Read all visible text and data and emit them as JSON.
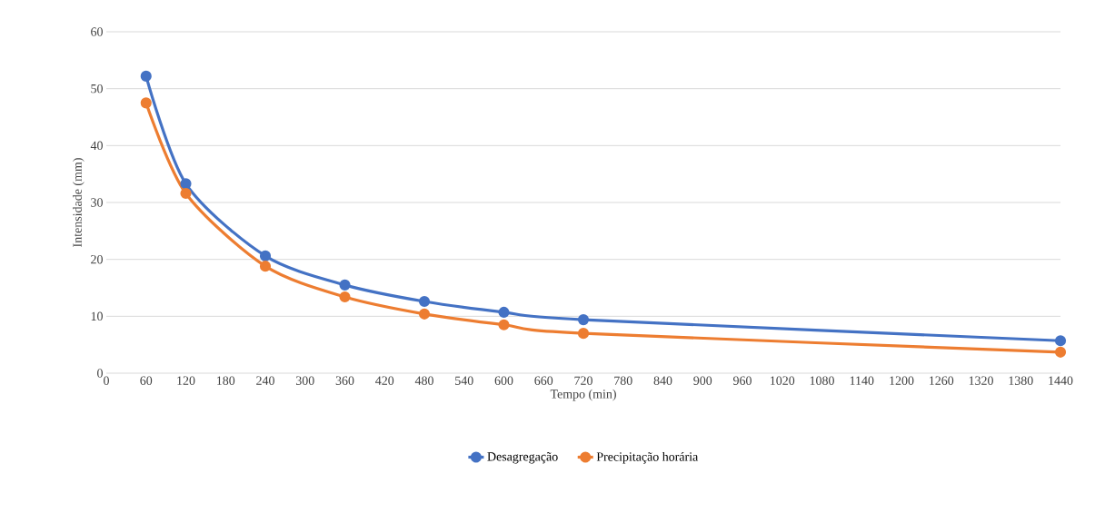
{
  "chart_data": {
    "type": "line",
    "xlabel": "Tempo (min)",
    "ylabel": "Intensidade (mm)",
    "x": [
      60,
      120,
      240,
      360,
      480,
      600,
      720,
      1440
    ],
    "series": [
      {
        "name": "Desagregação",
        "color": "#4472c4",
        "values": [
          52.2,
          33.3,
          20.6,
          15.5,
          12.6,
          10.7,
          9.4,
          5.7
        ]
      },
      {
        "name": "Precipitação horária",
        "color": "#ed7d31",
        "values": [
          47.5,
          31.6,
          18.8,
          13.4,
          10.4,
          8.5,
          7.0,
          3.7
        ]
      }
    ],
    "xlim": [
      0,
      1440
    ],
    "ylim": [
      0,
      60
    ],
    "xticks": [
      0,
      60,
      120,
      180,
      240,
      300,
      360,
      420,
      480,
      540,
      600,
      660,
      720,
      780,
      840,
      900,
      960,
      1020,
      1080,
      1140,
      1200,
      1260,
      1320,
      1380,
      1440
    ],
    "yticks": [
      0,
      10,
      20,
      30,
      40,
      50,
      60
    ],
    "grid": "y",
    "legend": "bottom",
    "marker": "circle",
    "line_style": "solid"
  }
}
